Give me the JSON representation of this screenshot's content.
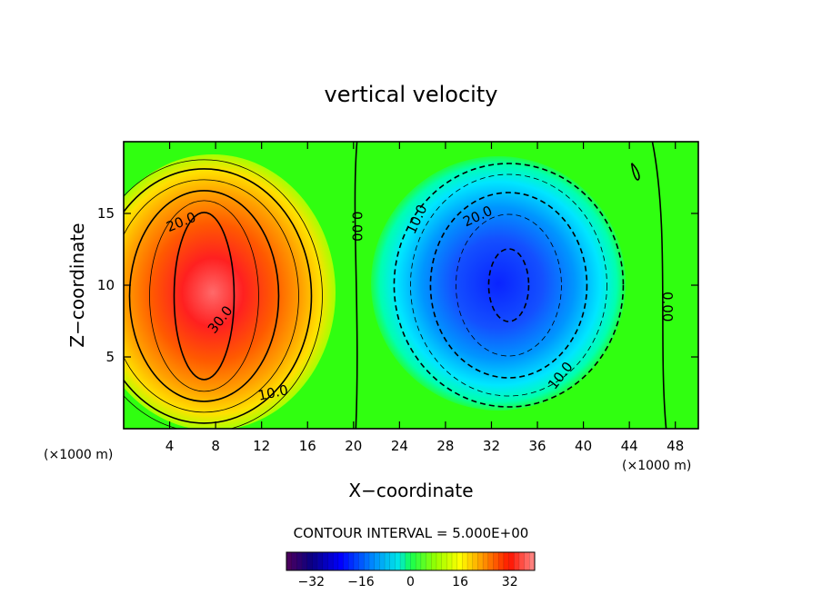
{
  "chart_data": {
    "type": "heatmap",
    "title": "vertical velocity",
    "xlabel": "X−coordinate",
    "ylabel": "Z−coordinate",
    "x_unit_left": "(×1000 m)",
    "x_unit_right": "(×1000 m)",
    "xlim": [
      0,
      50
    ],
    "ylim": [
      0,
      20
    ],
    "xticks": [
      "4",
      "8",
      "12",
      "16",
      "20",
      "24",
      "28",
      "32",
      "36",
      "40",
      "44",
      "48"
    ],
    "xtick_values": [
      4,
      8,
      12,
      16,
      20,
      24,
      28,
      32,
      36,
      40,
      44,
      48
    ],
    "yticks": [
      "5",
      "10",
      "15"
    ],
    "ytick_values": [
      5,
      10,
      15
    ],
    "contour_interval": "CONTOUR INTERVAL = 5.000E+00",
    "contour_labels": [
      {
        "text": "20.0",
        "x": 5.0,
        "z": 14.4,
        "angle": -22
      },
      {
        "text": "30.0",
        "x": 8.4,
        "z": 7.6,
        "angle": -52
      },
      {
        "text": "10.0",
        "x": 13.0,
        "z": 2.5,
        "angle": -12
      },
      {
        "text": "0.00",
        "x": 20.3,
        "z": 14.1,
        "angle": 90
      },
      {
        "text": "10.0",
        "x": 25.5,
        "z": 14.6,
        "angle": -65
      },
      {
        "text": "20.0",
        "x": 30.8,
        "z": 14.8,
        "angle": -25
      },
      {
        "text": "10.0",
        "x": 38.0,
        "z": 3.7,
        "angle": -52
      },
      {
        "text": "0.00",
        "x": 47.3,
        "z": 8.5,
        "angle": 90
      }
    ],
    "features": [
      {
        "type": "updraft",
        "center": [
          7.0,
          9.5
        ],
        "max": 38
      },
      {
        "type": "downdraft",
        "center": [
          33.5,
          10.0
        ],
        "min": -30
      }
    ],
    "colorbar": {
      "range": [
        -40,
        40
      ],
      "ticks": [
        "−32",
        "−16",
        "0",
        "16",
        "32"
      ],
      "tick_values": [
        -32,
        -16,
        0,
        16,
        32
      ]
    }
  }
}
